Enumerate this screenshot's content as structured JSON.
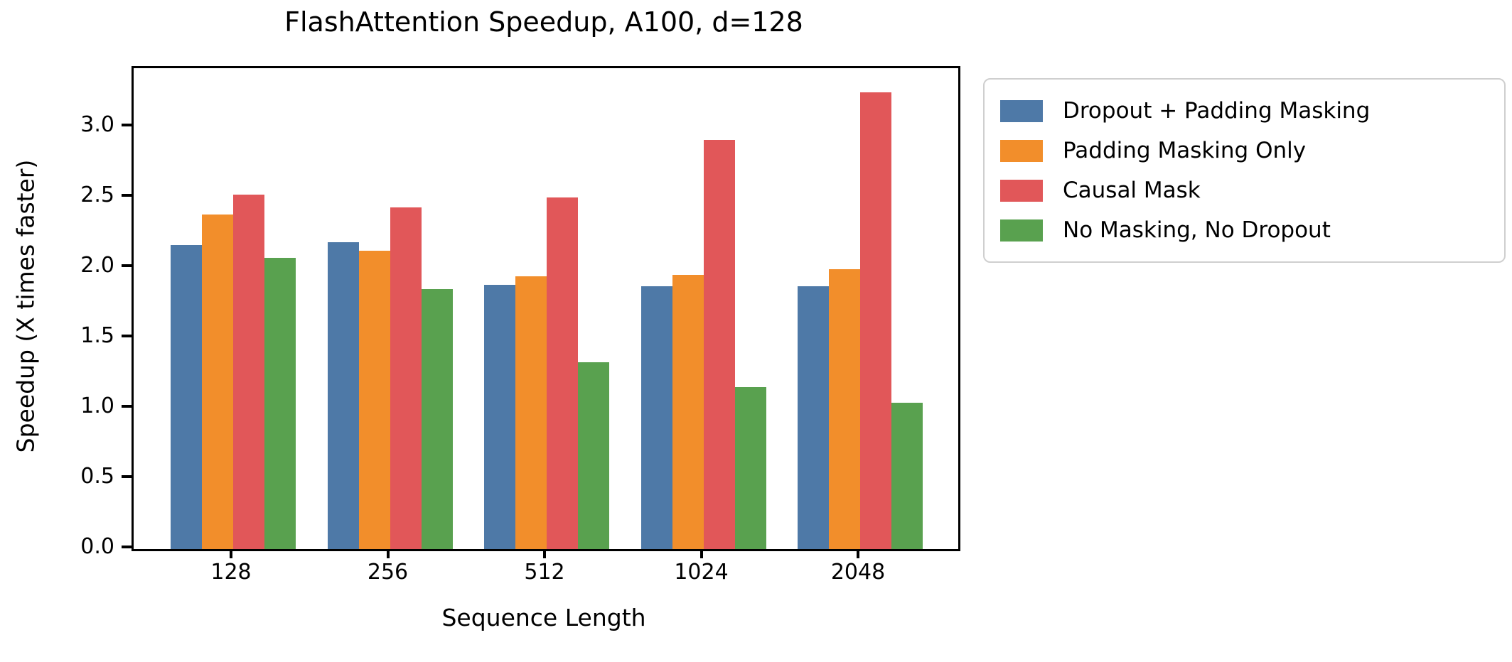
{
  "chart_data": {
    "type": "bar",
    "title": "FlashAttention Speedup, A100, d=128",
    "xlabel": "Sequence Length",
    "ylabel": "Speedup (X times faster)",
    "categories": [
      "128",
      "256",
      "512",
      "1024",
      "2048"
    ],
    "series": [
      {
        "name": "Dropout + Padding Masking",
        "color": "#4E79A7",
        "values": [
          2.16,
          2.18,
          1.88,
          1.87,
          1.87
        ]
      },
      {
        "name": "Padding Masking Only",
        "color": "#F28E2B",
        "values": [
          2.38,
          2.12,
          1.94,
          1.95,
          1.99
        ]
      },
      {
        "name": "Causal Mask",
        "color": "#E15759",
        "values": [
          2.52,
          2.43,
          2.5,
          2.91,
          3.25
        ]
      },
      {
        "name": "No Masking, No Dropout",
        "color": "#59A14F",
        "values": [
          2.07,
          1.85,
          1.33,
          1.15,
          1.04
        ]
      }
    ],
    "yticks": [
      0.0,
      0.5,
      1.0,
      1.5,
      2.0,
      2.5,
      3.0
    ],
    "ytick_labels": [
      "0.0",
      "0.5",
      "1.0",
      "1.5",
      "2.0",
      "2.5",
      "3.0"
    ],
    "ylim": [
      0,
      3.42
    ],
    "grid": false,
    "legend_position": "outside-upper-right",
    "colors": {
      "axis": "#000000",
      "text": "#000000",
      "legend_border": "#cfcfcf",
      "background": "#ffffff"
    }
  }
}
